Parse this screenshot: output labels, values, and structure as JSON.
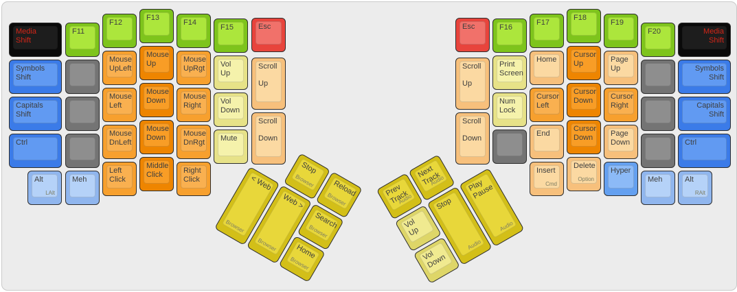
{
  "board": {
    "background": "#ececec",
    "border": "#c9c9c9"
  },
  "palette": {
    "black": {
      "side": "#0a0a0a",
      "top": "#1d1d1d",
      "text": "#d42517"
    },
    "green": {
      "side": "#7ec41c",
      "top": "#ace63c"
    },
    "red": {
      "side": "#e8443c",
      "top": "#f1716a"
    },
    "blue": {
      "side": "#3b7be8",
      "top": "#619af2"
    },
    "lblue": {
      "side": "#90b6ee",
      "top": "#b5d2f8"
    },
    "lblue2": {
      "side": "#64a0f0",
      "top": "#8cbaf7"
    },
    "gray": {
      "side": "#747474",
      "top": "#8e8e8e"
    },
    "orange": {
      "side": "#f7a02e",
      "top": "#f9b050"
    },
    "orange2": {
      "side": "#ee8500",
      "top": "#f89d26"
    },
    "peach": {
      "side": "#f7c07c",
      "top": "#fbd9a2"
    },
    "paleyellow": {
      "side": "#e7e288",
      "top": "#f5f2ab"
    },
    "gold": {
      "side": "#d3bf18",
      "top": "#e8d73a"
    },
    "palegold": {
      "side": "#ded668",
      "top": "#f0ea90"
    }
  },
  "keys": [
    {
      "name": "media-shift-l",
      "label": "Media\nShift",
      "color": "black"
    },
    {
      "name": "symbols-shift-l",
      "label": "Symbols\nShift",
      "color": "blue"
    },
    {
      "name": "capitals-shift-l",
      "label": "Capitals\nShift",
      "color": "blue"
    },
    {
      "name": "ctrl-l",
      "label": "Ctrl",
      "color": "blue"
    },
    {
      "name": "alt-l",
      "label": "Alt",
      "sub": "LAlt",
      "color": "lblue"
    },
    {
      "name": "f11",
      "label": "F11",
      "color": "green"
    },
    {
      "name": "blank-l1",
      "label": "",
      "color": "gray"
    },
    {
      "name": "blank-l2",
      "label": "",
      "color": "gray"
    },
    {
      "name": "blank-l3",
      "label": "",
      "color": "gray"
    },
    {
      "name": "meh-l",
      "label": "Meh",
      "color": "lblue"
    },
    {
      "name": "f12",
      "label": "F12",
      "color": "green"
    },
    {
      "name": "mouse-upleft",
      "label": "Mouse\nUpLeft",
      "color": "orange"
    },
    {
      "name": "mouse-left",
      "label": "Mouse\nLeft",
      "color": "orange"
    },
    {
      "name": "mouse-dnleft",
      "label": "Mouse\nDnLeft",
      "color": "orange"
    },
    {
      "name": "left-click",
      "label": "Left\nClick",
      "color": "orange"
    },
    {
      "name": "f13",
      "label": "F13",
      "color": "green"
    },
    {
      "name": "mouse-up",
      "label": "Mouse\nUp",
      "color": "orange2"
    },
    {
      "name": "mouse-down-1",
      "label": "Mouse\nDown",
      "color": "orange2"
    },
    {
      "name": "mouse-down-2",
      "label": "Mouse\nDown",
      "color": "orange2"
    },
    {
      "name": "middle-click",
      "label": "Middle\nClick",
      "color": "orange2"
    },
    {
      "name": "f14",
      "label": "F14",
      "color": "green"
    },
    {
      "name": "mouse-uprgt",
      "label": "Mouse\nUpRgt",
      "color": "orange"
    },
    {
      "name": "mouse-right",
      "label": "Mouse\nRight",
      "color": "orange"
    },
    {
      "name": "mouse-dnrgt",
      "label": "Mouse\nDnRgt",
      "color": "orange"
    },
    {
      "name": "right-click",
      "label": "Right\nClick",
      "color": "orange"
    },
    {
      "name": "f15",
      "label": "F15",
      "color": "green"
    },
    {
      "name": "vol-up-l",
      "label": "Vol\nUp",
      "color": "paleyellow"
    },
    {
      "name": "vol-down-l",
      "label": "Vol\nDown",
      "color": "paleyellow"
    },
    {
      "name": "mute",
      "label": "Mute",
      "color": "paleyellow"
    },
    {
      "name": "esc-l",
      "label": "Esc",
      "color": "red"
    },
    {
      "name": "scroll-up-l",
      "label": "Scroll\n\nUp",
      "color": "peach"
    },
    {
      "name": "scroll-down-l",
      "label": "Scroll\n\nDown",
      "color": "peach"
    },
    {
      "name": "browser-stop",
      "label": "Stop",
      "sub": "Browser",
      "color": "gold"
    },
    {
      "name": "browser-reload",
      "label": "Reload",
      "sub": "Browser",
      "color": "gold"
    },
    {
      "name": "web-back",
      "label": "< Web",
      "sub": "Browser",
      "sub_pos": "left",
      "color": "gold"
    },
    {
      "name": "web-forward",
      "label": "Web >",
      "sub": "Browser",
      "sub_pos": "left",
      "color": "gold"
    },
    {
      "name": "browser-search",
      "label": "Search",
      "sub": "Browser",
      "color": "gold"
    },
    {
      "name": "browser-home",
      "label": "Home",
      "sub": "Browser",
      "color": "gold"
    },
    {
      "name": "esc-r",
      "label": "Esc",
      "color": "red"
    },
    {
      "name": "scroll-up-r",
      "label": "Scroll\n\nUp",
      "color": "peach"
    },
    {
      "name": "scroll-down-r",
      "label": "Scroll\n\nDown",
      "color": "peach"
    },
    {
      "name": "f16",
      "label": "F16",
      "color": "green"
    },
    {
      "name": "print-screen",
      "label": "Print\nScreen",
      "color": "paleyellow"
    },
    {
      "name": "num-lock",
      "label": "Num\nLock",
      "color": "paleyellow"
    },
    {
      "name": "blank-r1",
      "label": "",
      "color": "gray"
    },
    {
      "name": "f17",
      "label": "F17",
      "color": "green"
    },
    {
      "name": "home",
      "label": "Home",
      "color": "peach"
    },
    {
      "name": "cursor-left",
      "label": "Cursor\nLeft",
      "color": "orange"
    },
    {
      "name": "end",
      "label": "End",
      "color": "peach"
    },
    {
      "name": "insert",
      "label": "Insert",
      "sub": "Cmd",
      "color": "peach"
    },
    {
      "name": "f18",
      "label": "F18",
      "color": "green"
    },
    {
      "name": "cursor-up",
      "label": "Cursor\nUp",
      "color": "orange2"
    },
    {
      "name": "cursor-down-1",
      "label": "Cursor\nDown",
      "color": "orange2"
    },
    {
      "name": "cursor-down-2",
      "label": "Cursor\nDown",
      "color": "orange2"
    },
    {
      "name": "delete",
      "label": "Delete",
      "sub": "Option",
      "color": "peach"
    },
    {
      "name": "f19",
      "label": "F19",
      "color": "green"
    },
    {
      "name": "page-up",
      "label": "Page\nUp",
      "color": "peach"
    },
    {
      "name": "cursor-right",
      "label": "Cursor\nRight",
      "color": "orange"
    },
    {
      "name": "page-down",
      "label": "Page\nDown",
      "color": "peach"
    },
    {
      "name": "hyper",
      "label": "Hyper",
      "color": "lblue2"
    },
    {
      "name": "f20",
      "label": "F20",
      "color": "green"
    },
    {
      "name": "blank-r2",
      "label": "",
      "color": "gray"
    },
    {
      "name": "blank-r3",
      "label": "",
      "color": "gray"
    },
    {
      "name": "blank-r4",
      "label": "",
      "color": "gray"
    },
    {
      "name": "meh-r",
      "label": "Meh",
      "color": "lblue"
    },
    {
      "name": "media-shift-r",
      "label": "Media\nShift",
      "color": "black",
      "align": "right"
    },
    {
      "name": "symbols-shift-r",
      "label": "Symbols\nShift",
      "color": "blue",
      "align": "right"
    },
    {
      "name": "capitals-shift-r",
      "label": "Capitals\nShift",
      "color": "blue",
      "align": "right"
    },
    {
      "name": "ctrl-r",
      "label": "Ctrl",
      "color": "blue"
    },
    {
      "name": "alt-r",
      "label": "Alt",
      "sub": "RAlt",
      "color": "lblue"
    },
    {
      "name": "prev-track",
      "label": "Prev\nTrack",
      "sub": "Audio",
      "color": "gold"
    },
    {
      "name": "next-track",
      "label": "Next\nTrack",
      "sub": "Audio",
      "color": "gold"
    },
    {
      "name": "vol-up-t",
      "label": "Vol\nUp",
      "color": "palegold"
    },
    {
      "name": "audio-stop",
      "label": "Stop",
      "sub": "Audio",
      "color": "gold"
    },
    {
      "name": "play-pause",
      "label": "Play\nPause",
      "sub": "Audio",
      "color": "gold"
    },
    {
      "name": "vol-down-t",
      "label": "Vol\nDown",
      "color": "palegold"
    }
  ]
}
